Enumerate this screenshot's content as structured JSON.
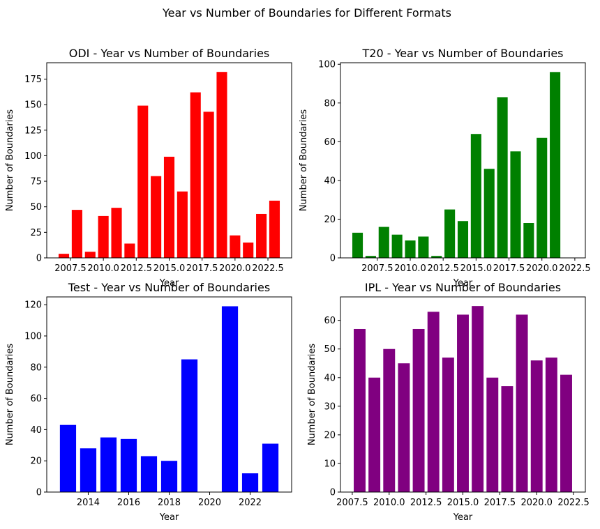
{
  "suptitle": "Year vs Number of Boundaries for Different Formats",
  "chart_data": [
    {
      "type": "bar",
      "title": "ODI - Year vs Number of Boundaries",
      "xlabel": "Year",
      "ylabel": "Number of Boundaries",
      "color": "#ff0000",
      "x": [
        2007,
        2008,
        2009,
        2010,
        2011,
        2012,
        2013,
        2014,
        2015,
        2016,
        2017,
        2018,
        2019,
        2020,
        2021,
        2022,
        2023
      ],
      "values": [
        4,
        47,
        6,
        41,
        49,
        14,
        149,
        80,
        99,
        65,
        162,
        143,
        182,
        22,
        15,
        43,
        56
      ],
      "xlim": [
        2005.7,
        2024.3
      ],
      "ylim": [
        0,
        191
      ],
      "xticks": [
        2007.5,
        2010.0,
        2012.5,
        2015.0,
        2017.5,
        2020.0,
        2022.5
      ],
      "xtick_labels": [
        "2007.5",
        "2010.0",
        "2012.5",
        "2015.0",
        "2017.5",
        "2020.0",
        "2022.5"
      ],
      "yticks": [
        0,
        25,
        50,
        75,
        100,
        125,
        150,
        175
      ],
      "ytick_labels": [
        "0",
        "25",
        "50",
        "75",
        "100",
        "125",
        "150",
        "175"
      ]
    },
    {
      "type": "bar",
      "title": "T20 - Year vs Number of Boundaries",
      "xlabel": "Year",
      "ylabel": "Number of Boundaries",
      "color": "#008000",
      "x": [
        2006,
        2007,
        2008,
        2009,
        2010,
        2011,
        2012,
        2013,
        2014,
        2015,
        2016,
        2017,
        2018,
        2019,
        2020,
        2021,
        2022
      ],
      "values": [
        13,
        1,
        16,
        12,
        9,
        11,
        1,
        25,
        19,
        64,
        46,
        83,
        55,
        18,
        62,
        96,
        0
      ],
      "xlim": [
        2004.7,
        2023.3
      ],
      "ylim": [
        0,
        100.8
      ],
      "xticks": [
        2007.5,
        2010.0,
        2012.5,
        2015.0,
        2017.5,
        2020.0,
        2022.5
      ],
      "xtick_labels": [
        "2007.5",
        "2010.0",
        "2012.5",
        "2015.0",
        "2017.5",
        "2020.0",
        "2022.5"
      ],
      "yticks": [
        0,
        20,
        40,
        60,
        80,
        100
      ],
      "ytick_labels": [
        "0",
        "20",
        "40",
        "60",
        "80",
        "100"
      ]
    },
    {
      "type": "bar",
      "title": "Test - Year vs Number of Boundaries",
      "xlabel": "Year",
      "ylabel": "Number of Boundaries",
      "color": "#0000ff",
      "x": [
        2013,
        2014,
        2015,
        2016,
        2017,
        2018,
        2019,
        2020,
        2021,
        2022,
        2023
      ],
      "values": [
        43,
        28,
        35,
        34,
        23,
        20,
        85,
        0,
        119,
        12,
        31
      ],
      "xlim": [
        2011.95,
        2024.05
      ],
      "ylim": [
        0,
        125
      ],
      "xticks": [
        2014,
        2016,
        2018,
        2020,
        2022
      ],
      "xtick_labels": [
        "2014",
        "2016",
        "2018",
        "2020",
        "2022"
      ],
      "yticks": [
        0,
        20,
        40,
        60,
        80,
        100,
        120
      ],
      "ytick_labels": [
        "0",
        "20",
        "40",
        "60",
        "80",
        "100",
        "120"
      ]
    },
    {
      "type": "bar",
      "title": "IPL - Year vs Number of Boundaries",
      "xlabel": "Year",
      "ylabel": "Number of Boundaries",
      "color": "#800080",
      "x": [
        2008,
        2009,
        2010,
        2011,
        2012,
        2013,
        2014,
        2015,
        2016,
        2017,
        2018,
        2019,
        2020,
        2021,
        2022
      ],
      "values": [
        57,
        40,
        50,
        45,
        57,
        63,
        47,
        62,
        65,
        40,
        37,
        62,
        46,
        47,
        41
      ],
      "xlim": [
        2006.7,
        2023.3
      ],
      "ylim": [
        0,
        68.2
      ],
      "xticks": [
        2007.5,
        2010.0,
        2012.5,
        2015.0,
        2017.5,
        2020.0,
        2022.5
      ],
      "xtick_labels": [
        "2007.5",
        "2010.0",
        "2012.5",
        "2015.0",
        "2017.5",
        "2020.0",
        "2022.5"
      ],
      "yticks": [
        0,
        10,
        20,
        30,
        40,
        50,
        60
      ],
      "ytick_labels": [
        "0",
        "10",
        "20",
        "30",
        "40",
        "50",
        "60"
      ]
    }
  ]
}
